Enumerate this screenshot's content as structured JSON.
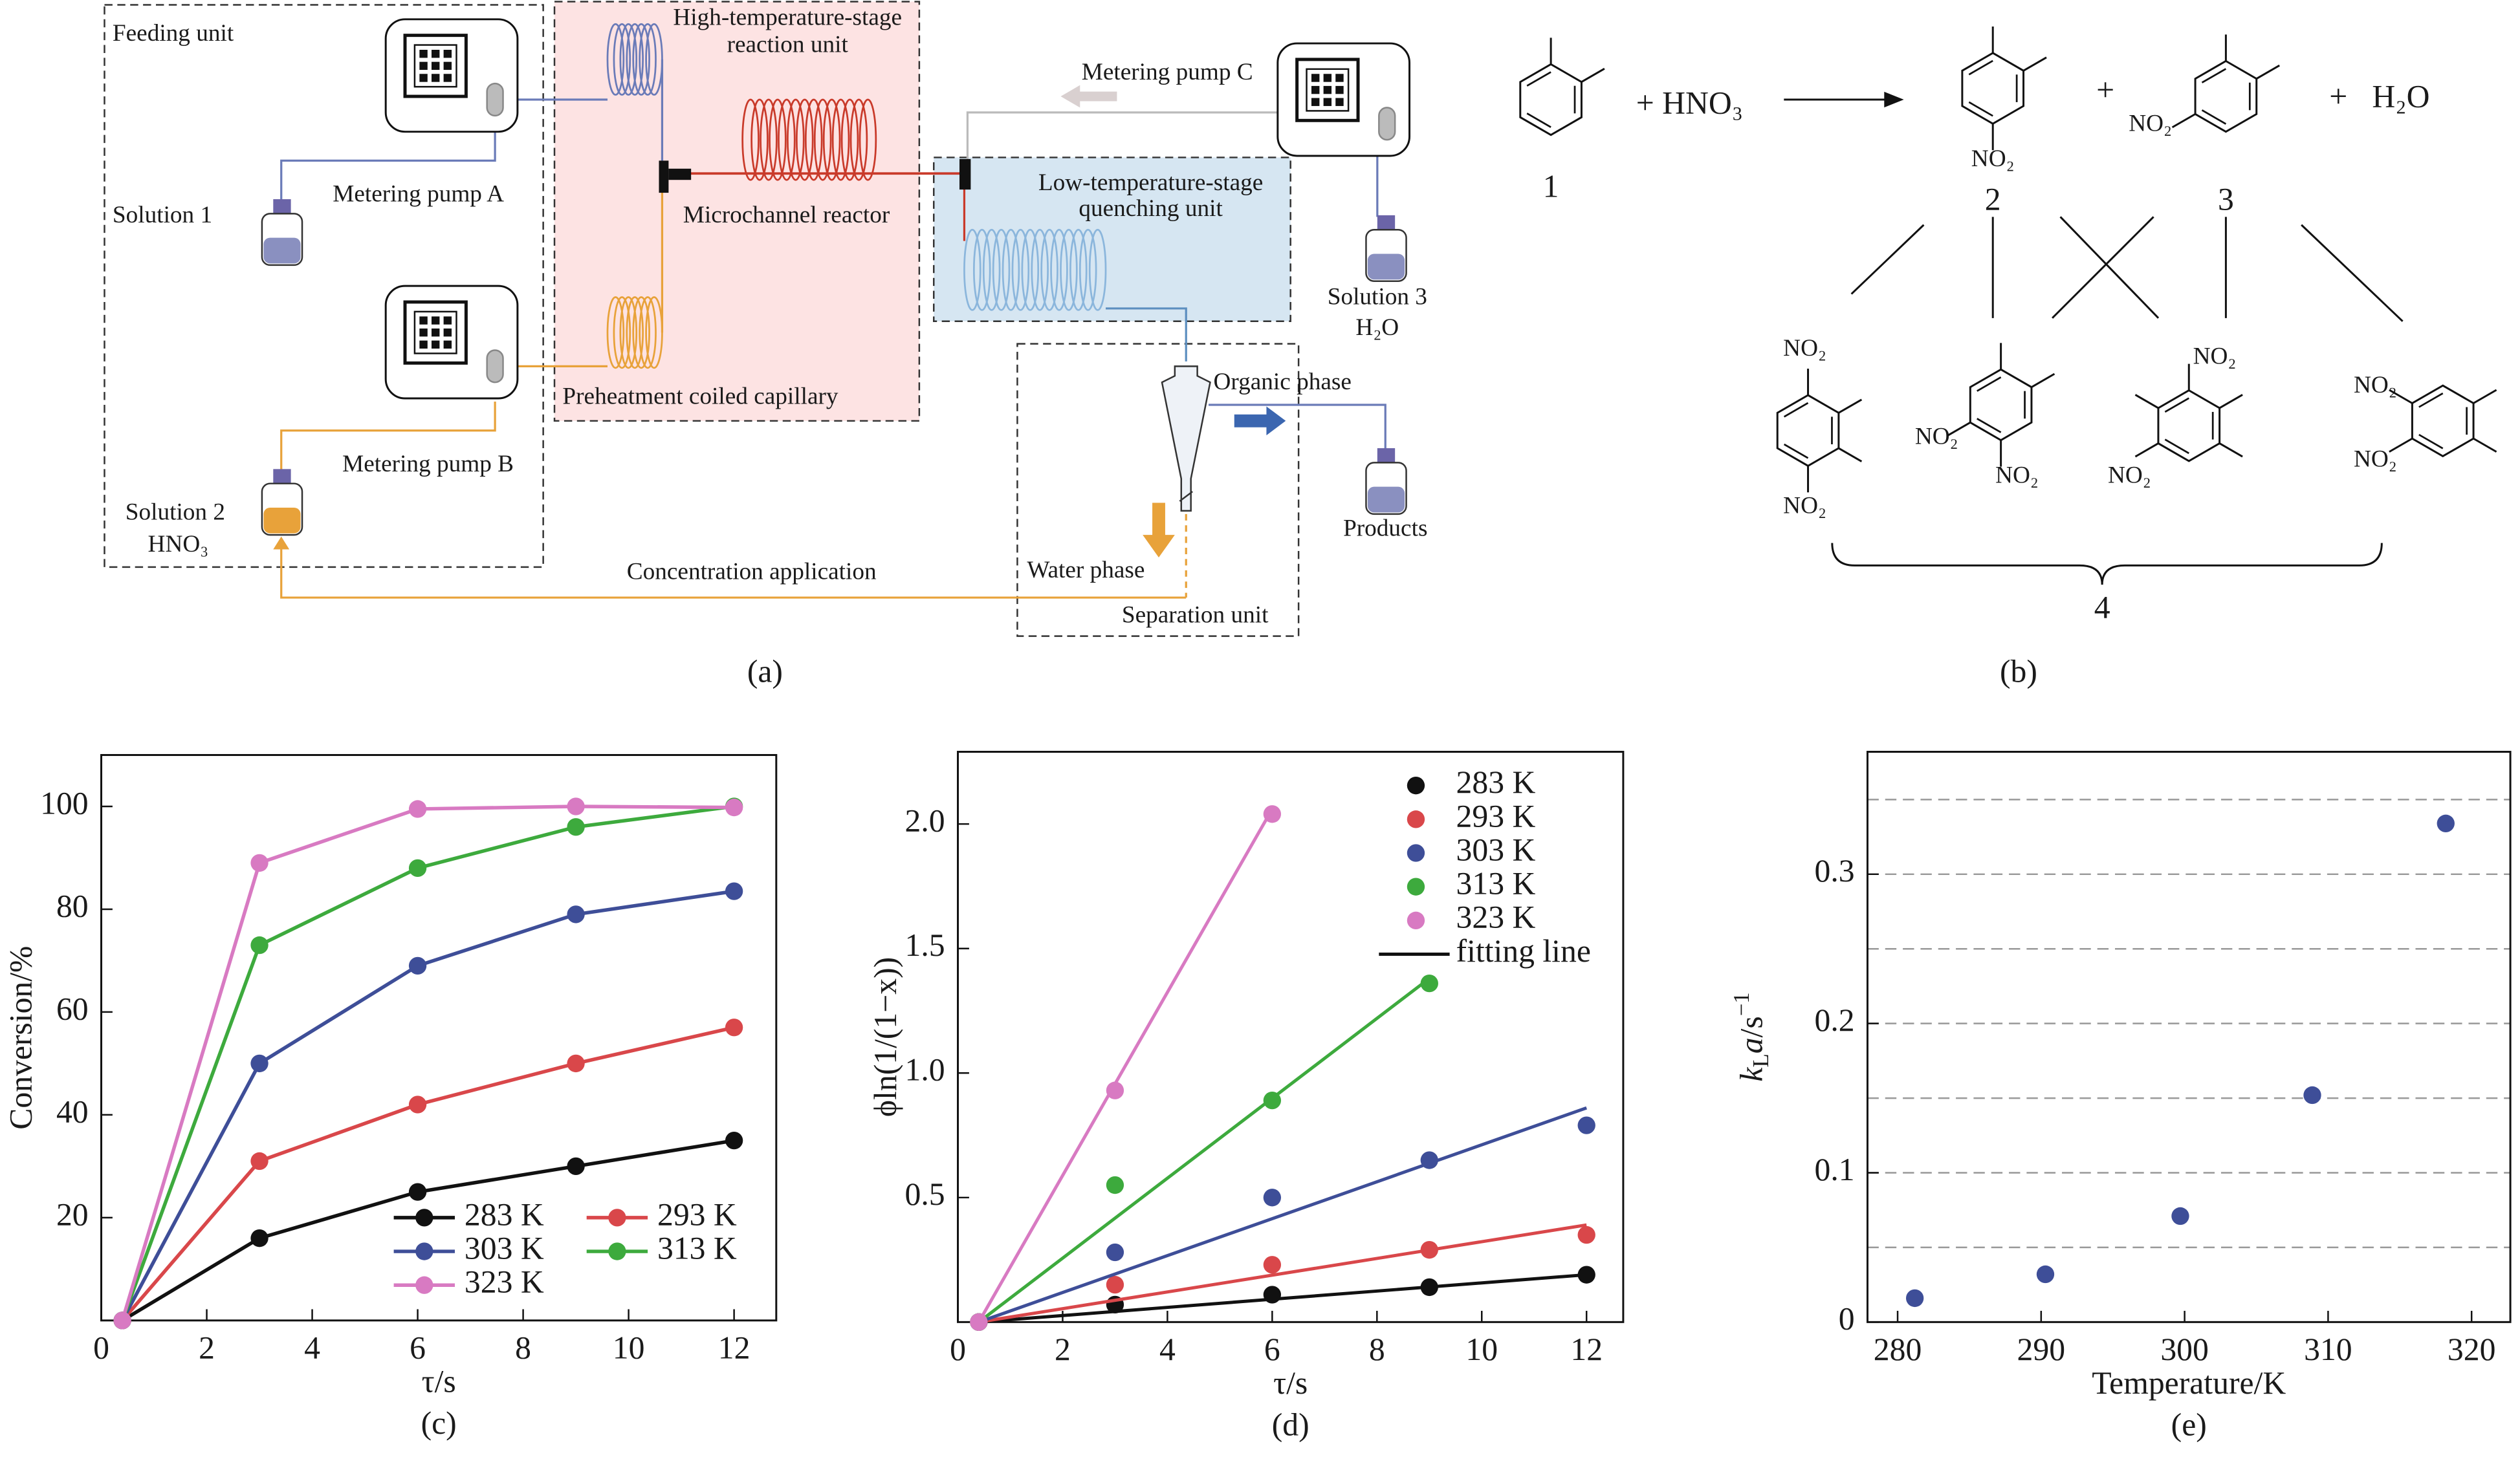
{
  "diagram": {
    "feeding_unit": "Feeding unit",
    "high_temp": [
      "High-temperature-stage",
      "reaction unit"
    ],
    "pump_c": "Metering pump C",
    "pump_a": "Metering pump A",
    "solution_1": "Solution 1",
    "reactor": "Microchannel reactor",
    "low_temp": [
      "Low-temperature-stage",
      "quenching unit"
    ],
    "solution_3": [
      "Solution 3",
      "H₂O"
    ],
    "organic": "Organic phase",
    "preheat": "Preheatment coiled capillary",
    "pump_b": "Metering pump B",
    "solution_2": [
      "Solution 2",
      "HNO₃"
    ],
    "products": "Products",
    "concentration": "Concentration application",
    "water": "Water phase",
    "separation": "Separation unit",
    "caption": "(a)"
  },
  "scheme": {
    "compound_1": "1",
    "reagent": "+ HNO₃",
    "compound_2": "2",
    "compound_3": "3",
    "nitro_2": "NO₂",
    "nitro_3": "NO₂",
    "plus": [
      "+",
      "+"
    ],
    "water": "H₂O",
    "products": [
      "NO₂",
      "NO₂",
      "NO₂",
      "NO₂",
      "NO₂",
      "NO₂",
      "NO₂",
      "NO₂"
    ],
    "compound_4": "4",
    "caption": "(b)"
  },
  "chart_data": [
    {
      "type": "line",
      "caption": "(c)",
      "x_label": "τ/s",
      "y_label": "Conversion/%",
      "x": [
        0.4,
        3,
        6,
        9,
        12
      ],
      "series": [
        {
          "name": "283 K",
          "color": "#111111",
          "values": [
            0,
            16,
            25,
            30,
            35
          ]
        },
        {
          "name": "293 K",
          "color": "#d9474a",
          "values": [
            0,
            31,
            42,
            50,
            57
          ]
        },
        {
          "name": "303 K",
          "color": "#3e4e98",
          "values": [
            0,
            50,
            69,
            79,
            83.5
          ]
        },
        {
          "name": "313 K",
          "color": "#3daa3d",
          "values": [
            0,
            73,
            88,
            96,
            100
          ]
        },
        {
          "name": "323 K",
          "color": "#d87ac2",
          "values": [
            0,
            89,
            99.5,
            100,
            99.8
          ]
        }
      ],
      "xlim": [
        0,
        12.8
      ],
      "ylim": [
        0,
        110
      ],
      "xticks": [
        0,
        2,
        4,
        6,
        8,
        10,
        12
      ],
      "yticks": [
        20,
        40,
        60,
        80,
        100
      ],
      "legend": "lower right"
    },
    {
      "type": "scatter",
      "caption": "(d)",
      "x_label": "τ/s",
      "y_label": "ϕln(1/(1−x))",
      "fit_label": "fitting line",
      "series": [
        {
          "name": "283 K",
          "color": "#111111",
          "x": [
            0.4,
            3,
            6,
            9,
            12
          ],
          "values": [
            0,
            0.07,
            0.11,
            0.14,
            0.19
          ],
          "fit": {
            "x": [
              0.4,
              12
            ],
            "y": [
              0,
              0.19
            ]
          }
        },
        {
          "name": "293 K",
          "color": "#d9474a",
          "x": [
            0.4,
            3,
            6,
            9,
            12
          ],
          "values": [
            0,
            0.15,
            0.23,
            0.29,
            0.35
          ],
          "fit": {
            "x": [
              0.4,
              12
            ],
            "y": [
              0,
              0.39
            ]
          }
        },
        {
          "name": "303 K",
          "color": "#3e4e98",
          "x": [
            0.4,
            3,
            6,
            9,
            12
          ],
          "values": [
            0,
            0.28,
            0.5,
            0.65,
            0.79
          ],
          "fit": {
            "x": [
              0.4,
              12
            ],
            "y": [
              0,
              0.86
            ]
          }
        },
        {
          "name": "313 K",
          "color": "#3daa3d",
          "x": [
            0.4,
            3,
            6,
            9
          ],
          "values": [
            0,
            0.55,
            0.89,
            1.36
          ],
          "fit": {
            "x": [
              0.4,
              9
            ],
            "y": [
              0,
              1.38
            ]
          }
        },
        {
          "name": "323 K",
          "color": "#d87ac2",
          "x": [
            0.4,
            3,
            6
          ],
          "values": [
            0,
            0.93,
            2.04
          ],
          "fit": {
            "x": [
              0.4,
              6
            ],
            "y": [
              0,
              2.06
            ]
          }
        }
      ],
      "xlim": [
        0,
        12.7
      ],
      "ylim": [
        0,
        2.29
      ],
      "xticks": [
        0,
        2,
        4,
        6,
        8,
        10,
        12
      ],
      "yticks": [
        0.5,
        {
          "value": 1,
          "label": "1.0"
        },
        1.5,
        {
          "value": 2,
          "label": "2.0"
        }
      ],
      "legend": "upper right"
    },
    {
      "type": "scatter",
      "caption": "(e)",
      "x_label": "Temperature/K",
      "y_label": [
        "k",
        "L",
        "a",
        "/s",
        "−1"
      ],
      "color": "#3e4e98",
      "x": [
        281.2,
        290.3,
        299.7,
        308.9,
        318.2
      ],
      "values": [
        0.016,
        0.032,
        0.071,
        0.152,
        0.334
      ],
      "xlim": [
        277.9,
        322.7
      ],
      "ylim": [
        0,
        0.382
      ],
      "xticks": [
        280,
        290,
        300,
        310,
        320
      ],
      "yticks": [
        0,
        0.1,
        0.2,
        0.3
      ],
      "grid": true,
      "ygrid": [
        0.05,
        0.1,
        0.15,
        0.2,
        0.25,
        0.3,
        0.35
      ]
    }
  ]
}
